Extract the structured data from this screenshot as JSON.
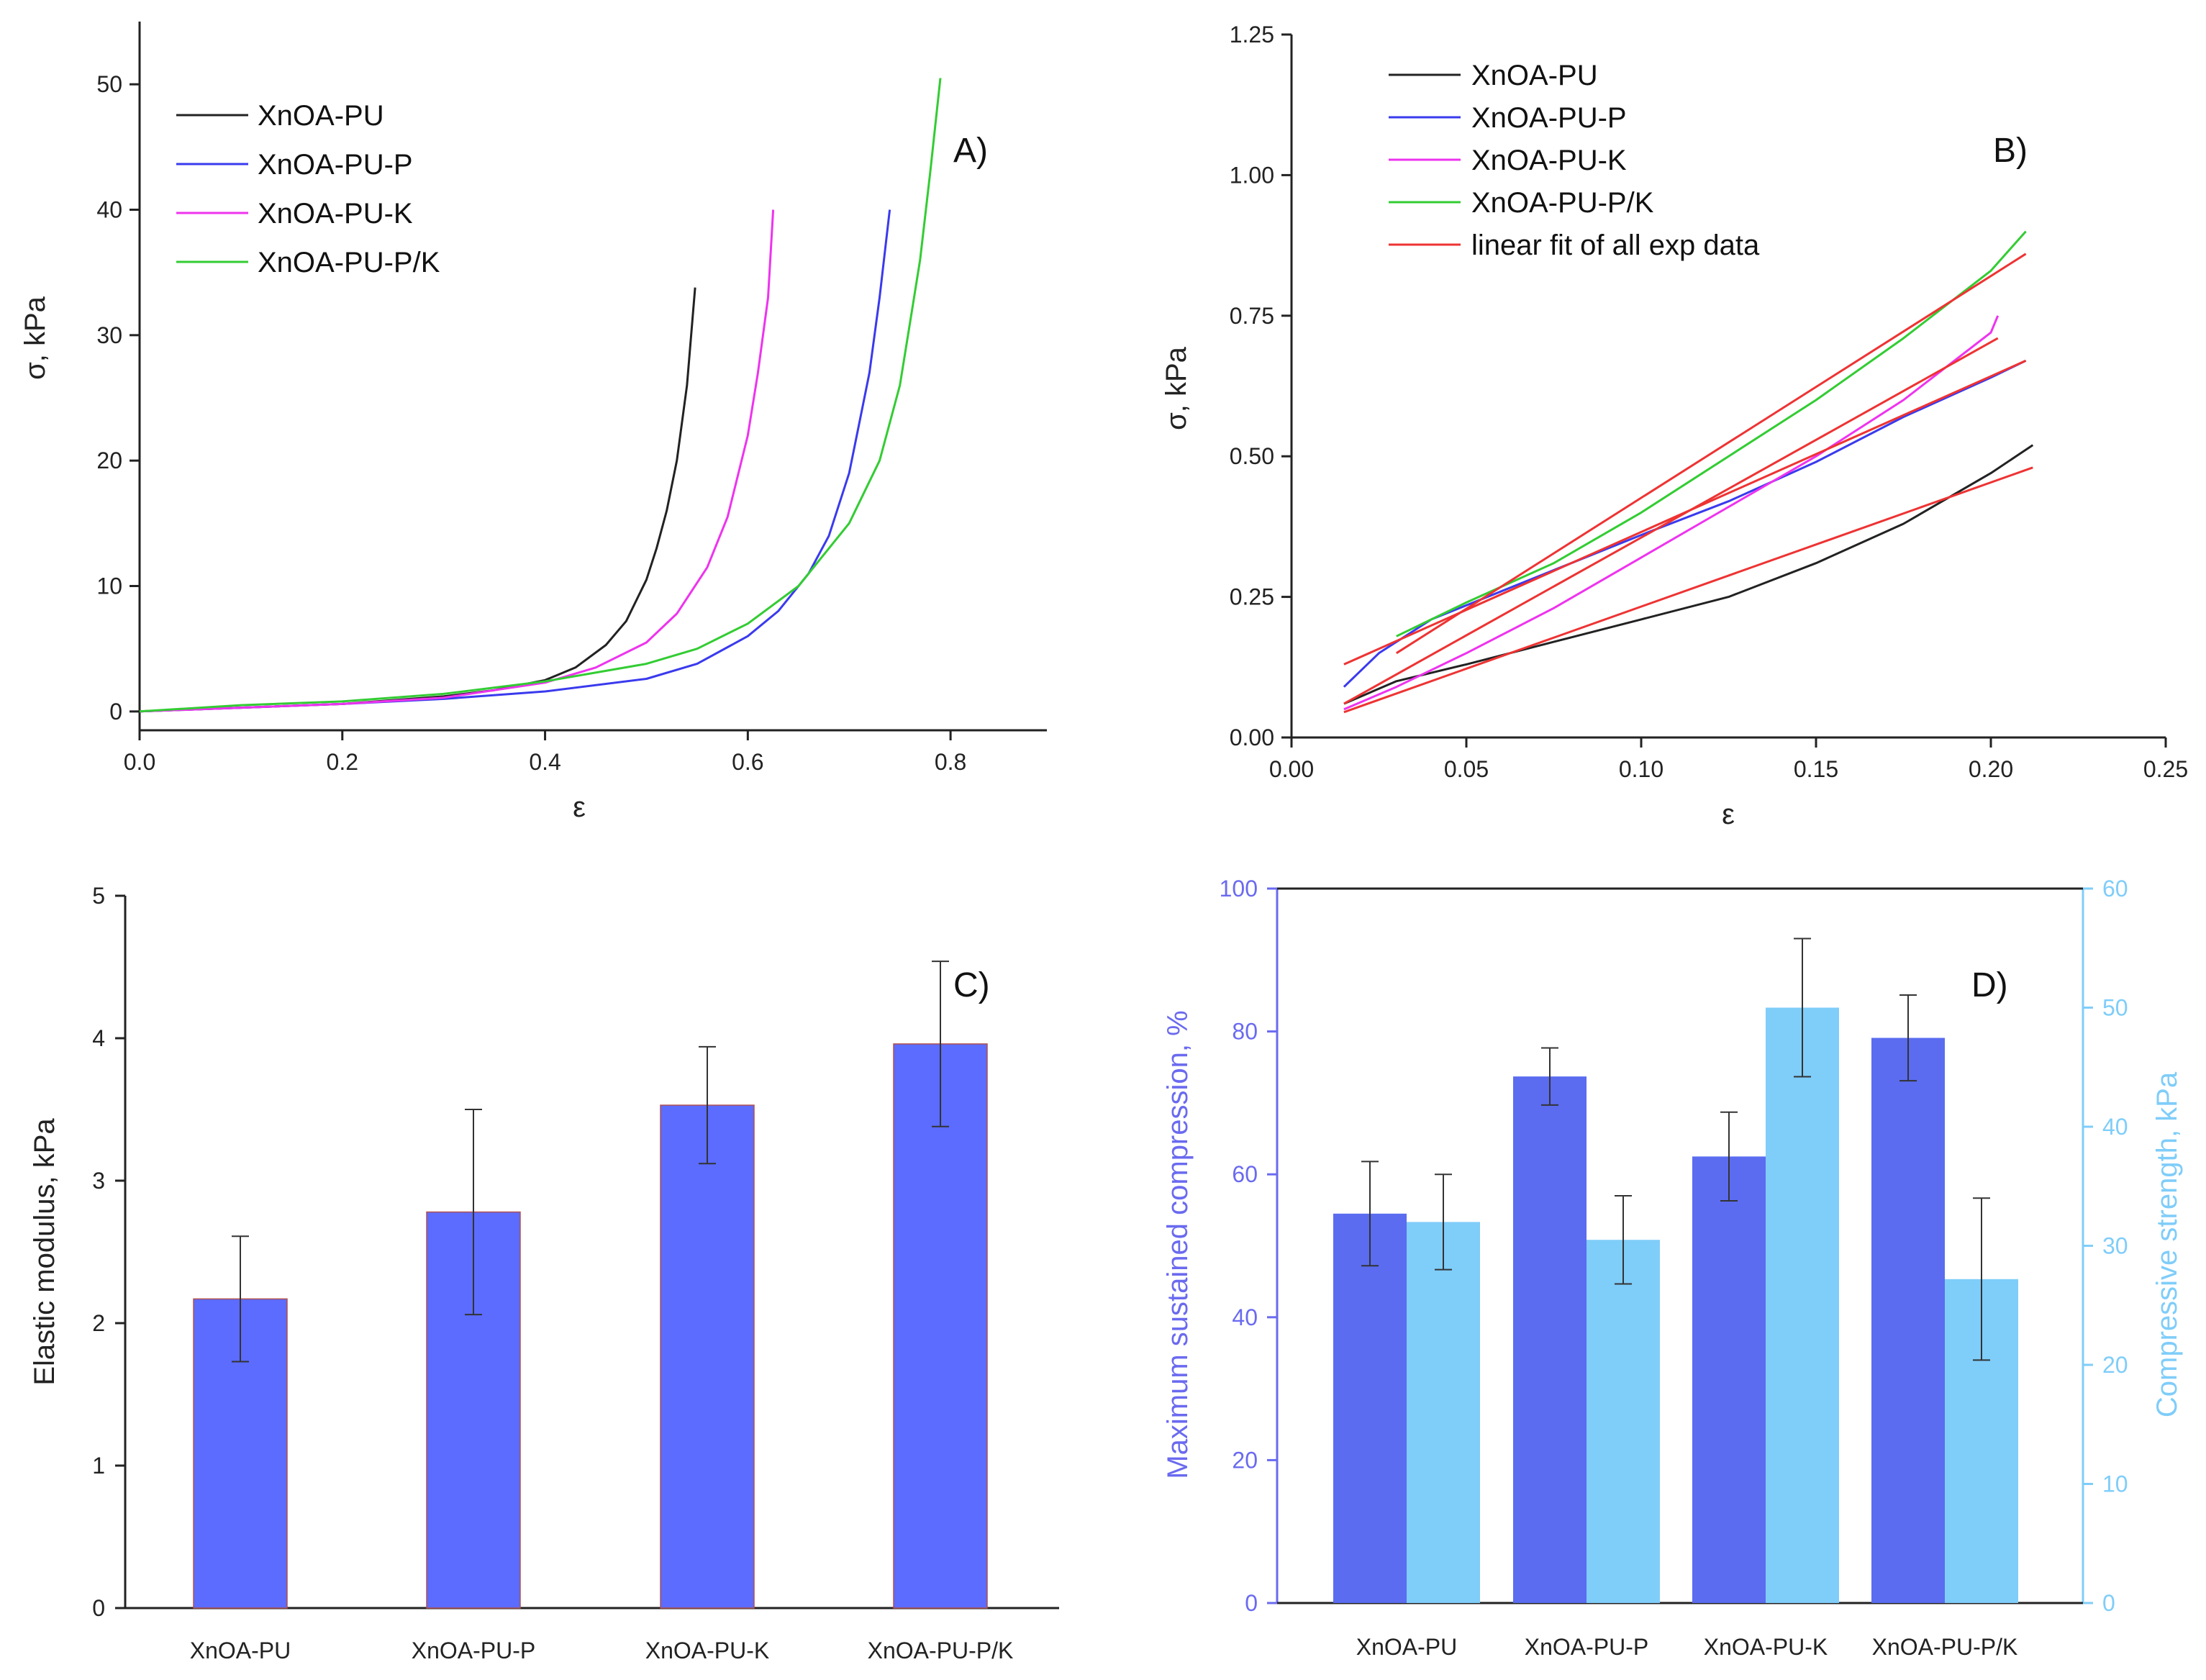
{
  "chart_data": [
    {
      "panel": "A)",
      "type": "line",
      "xlabel": "ε",
      "ylabel": "σ, kPa",
      "xlim": [
        0,
        0.9
      ],
      "ylim": [
        -1.5,
        55
      ],
      "xticks": [
        "0.0",
        "0.2",
        "0.4",
        "0.6",
        "0.8"
      ],
      "yticks": [
        "0",
        "10",
        "20",
        "30",
        "40",
        "50"
      ],
      "legend_position": "top-left",
      "series": [
        {
          "name": "XnOA-PU",
          "color": "#222222",
          "x": [
            0,
            0.1,
            0.2,
            0.3,
            0.35,
            0.4,
            0.43,
            0.46,
            0.48,
            0.5,
            0.51,
            0.52,
            0.53,
            0.54,
            0.548
          ],
          "y": [
            0,
            0.3,
            0.6,
            1.2,
            1.7,
            2.5,
            3.5,
            5.3,
            7.2,
            10.5,
            13,
            16,
            20,
            26,
            33.8
          ]
        },
        {
          "name": "XnOA-PU-P",
          "color": "#3a3aee",
          "x": [
            0,
            0.1,
            0.2,
            0.3,
            0.4,
            0.5,
            0.55,
            0.6,
            0.63,
            0.66,
            0.68,
            0.7,
            0.71,
            0.72,
            0.73,
            0.74
          ],
          "y": [
            0,
            0.3,
            0.6,
            1,
            1.6,
            2.6,
            3.8,
            6,
            8,
            11,
            14,
            19,
            23,
            27,
            33,
            40
          ]
        },
        {
          "name": "XnOA-PU-K",
          "color": "#ee33ee",
          "x": [
            0,
            0.1,
            0.2,
            0.3,
            0.4,
            0.45,
            0.5,
            0.53,
            0.56,
            0.58,
            0.6,
            0.61,
            0.62,
            0.625
          ],
          "y": [
            0,
            0.3,
            0.6,
            1.1,
            2.3,
            3.5,
            5.5,
            7.8,
            11.5,
            15.5,
            22,
            27,
            33,
            40
          ]
        },
        {
          "name": "XnOA-PU-P/K",
          "color": "#33cc33",
          "x": [
            0,
            0.1,
            0.2,
            0.3,
            0.4,
            0.5,
            0.55,
            0.6,
            0.65,
            0.7,
            0.73,
            0.75,
            0.76,
            0.77,
            0.78,
            0.79
          ],
          "y": [
            0,
            0.5,
            0.8,
            1.4,
            2.4,
            3.8,
            5,
            7,
            10,
            15,
            20,
            26,
            31,
            36,
            43,
            50.5
          ]
        }
      ]
    },
    {
      "panel": "B)",
      "type": "line",
      "xlabel": "ε",
      "ylabel": "σ, kPa",
      "xlim": [
        0,
        0.25
      ],
      "ylim": [
        0,
        1.25
      ],
      "xticks": [
        "0.00",
        "0.05",
        "0.10",
        "0.15",
        "0.20",
        "0.25"
      ],
      "yticks": [
        "0.00",
        "0.25",
        "0.50",
        "0.75",
        "1.00",
        "1.25"
      ],
      "legend_position": "top-left",
      "series": [
        {
          "name": "XnOA-PU",
          "color": "#222222",
          "x": [
            0.015,
            0.03,
            0.05,
            0.075,
            0.1,
            0.125,
            0.15,
            0.175,
            0.2,
            0.212
          ],
          "y": [
            0.06,
            0.1,
            0.13,
            0.17,
            0.21,
            0.25,
            0.31,
            0.38,
            0.47,
            0.52
          ]
        },
        {
          "name": "XnOA-PU-P",
          "color": "#3a3aee",
          "x": [
            0.015,
            0.025,
            0.04,
            0.06,
            0.08,
            0.1,
            0.125,
            0.15,
            0.175,
            0.2,
            0.21
          ],
          "y": [
            0.09,
            0.15,
            0.21,
            0.26,
            0.31,
            0.36,
            0.42,
            0.49,
            0.57,
            0.64,
            0.67
          ]
        },
        {
          "name": "XnOA-PU-K",
          "color": "#ee33ee",
          "x": [
            0.015,
            0.03,
            0.05,
            0.075,
            0.1,
            0.125,
            0.15,
            0.175,
            0.2,
            0.202
          ],
          "y": [
            0.05,
            0.09,
            0.15,
            0.23,
            0.32,
            0.41,
            0.5,
            0.6,
            0.72,
            0.75
          ]
        },
        {
          "name": "XnOA-PU-P/K",
          "color": "#33cc33",
          "x": [
            0.03,
            0.05,
            0.075,
            0.1,
            0.125,
            0.15,
            0.175,
            0.2,
            0.21
          ],
          "y": [
            0.18,
            0.24,
            0.31,
            0.4,
            0.5,
            0.6,
            0.71,
            0.83,
            0.9
          ]
        },
        {
          "name": "linear fit of all exp data",
          "color": "#ee3333",
          "fits": [
            {
              "x": [
                0.015,
                0.212
              ],
              "y": [
                0.045,
                0.48
              ]
            },
            {
              "x": [
                0.015,
                0.21
              ],
              "y": [
                0.13,
                0.67
              ]
            },
            {
              "x": [
                0.015,
                0.202
              ],
              "y": [
                0.06,
                0.71
              ]
            },
            {
              "x": [
                0.03,
                0.21
              ],
              "y": [
                0.15,
                0.86
              ]
            }
          ]
        }
      ]
    },
    {
      "panel": "C)",
      "type": "bar",
      "ylabel": "Elastic modulus, kPa",
      "ylim": [
        0,
        5
      ],
      "yticks": [
        "0",
        "1",
        "2",
        "3",
        "4",
        "5"
      ],
      "categories": [
        "XnOA-PU",
        "XnOA-PU-P",
        "XnOA-PU-K",
        "XnOA-PU-P/K"
      ],
      "values": [
        2.17,
        2.78,
        3.53,
        3.96
      ],
      "errors": [
        0.44,
        0.72,
        0.41,
        0.58
      ],
      "bar_color": "#5b6cfe"
    },
    {
      "panel": "D)",
      "type": "bar",
      "ylabel": "Maximum sustained compression, %",
      "ylabel_right": "Compressive strength, kPa",
      "ylim": [
        0,
        100
      ],
      "ylim_right": [
        0,
        60
      ],
      "yticks": [
        "0",
        "20",
        "40",
        "60",
        "80",
        "100"
      ],
      "yticks_right": [
        "0",
        "10",
        "20",
        "30",
        "40",
        "50",
        "60"
      ],
      "categories": [
        "XnOA-PU",
        "XnOA-PU-P",
        "XnOA-PU-K",
        "XnOA-PU-P/K"
      ],
      "series": [
        {
          "name": "Maximum sustained compression",
          "axis": "left",
          "color": "#5b6cf0",
          "values": [
            54.5,
            73.7,
            62.5,
            79.1
          ],
          "errors": [
            7.3,
            4,
            6.2,
            6
          ]
        },
        {
          "name": "Compressive strength",
          "axis": "right",
          "color": "#7fcdf9",
          "values": [
            32,
            30.5,
            50,
            27.2
          ],
          "errors": [
            4,
            3.7,
            5.8,
            6.8
          ]
        }
      ],
      "left_axis_color": "#6a6af0",
      "right_axis_color": "#7fcdf9"
    }
  ]
}
